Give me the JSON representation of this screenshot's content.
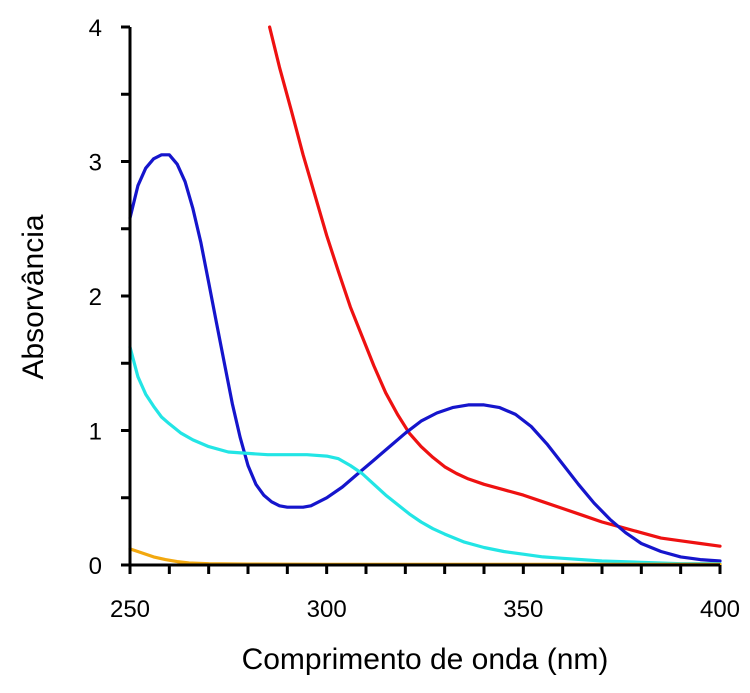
{
  "chart_data": {
    "type": "line",
    "title": "",
    "xlabel": "Comprimento de onda (nm)",
    "ylabel": "Absorvância",
    "xlim": [
      250,
      400
    ],
    "ylim": [
      0,
      4
    ],
    "x_ticks": [
      "250",
      "300",
      "350",
      "400"
    ],
    "y_ticks": [
      "0",
      "1",
      "2",
      "3",
      "4"
    ],
    "grid": false,
    "legend": "none",
    "series": [
      {
        "color": "#ee1111",
        "x": [
          285.5,
          288,
          291,
          294,
          297,
          300,
          303,
          306,
          309,
          312,
          315,
          318,
          321,
          324,
          327,
          330,
          333,
          336,
          340,
          345,
          350,
          355,
          360,
          365,
          370,
          375,
          380,
          385,
          390,
          395,
          400
        ],
        "y": [
          4.0,
          3.7,
          3.38,
          3.05,
          2.75,
          2.45,
          2.18,
          1.92,
          1.7,
          1.48,
          1.28,
          1.12,
          0.98,
          0.88,
          0.8,
          0.73,
          0.68,
          0.64,
          0.6,
          0.56,
          0.52,
          0.47,
          0.42,
          0.37,
          0.32,
          0.28,
          0.24,
          0.2,
          0.18,
          0.16,
          0.14
        ]
      },
      {
        "color": "#1515cc",
        "x": [
          250,
          252,
          254,
          256,
          258,
          260,
          262,
          264,
          266,
          268,
          270,
          272,
          274,
          276,
          278,
          280,
          282,
          284,
          286,
          288,
          290,
          292,
          294,
          296,
          298,
          300,
          304,
          308,
          312,
          316,
          320,
          324,
          328,
          332,
          336,
          340,
          344,
          348,
          352,
          356,
          360,
          364,
          368,
          372,
          376,
          380,
          385,
          390,
          395,
          400
        ],
        "y": [
          2.58,
          2.82,
          2.95,
          3.02,
          3.05,
          3.05,
          2.98,
          2.85,
          2.65,
          2.4,
          2.1,
          1.8,
          1.5,
          1.2,
          0.95,
          0.74,
          0.6,
          0.52,
          0.47,
          0.44,
          0.43,
          0.43,
          0.43,
          0.44,
          0.47,
          0.5,
          0.58,
          0.68,
          0.78,
          0.88,
          0.98,
          1.07,
          1.13,
          1.17,
          1.19,
          1.19,
          1.17,
          1.12,
          1.03,
          0.9,
          0.75,
          0.6,
          0.46,
          0.34,
          0.24,
          0.16,
          0.1,
          0.06,
          0.04,
          0.03
        ]
      },
      {
        "color": "#22e5e5",
        "x": [
          250,
          252,
          254,
          256,
          258,
          260,
          263,
          266,
          270,
          275,
          280,
          285,
          290,
          295,
          300,
          303,
          306,
          309,
          312,
          315,
          318,
          321,
          324,
          327,
          330,
          335,
          340,
          345,
          350,
          355,
          360,
          370,
          380,
          390,
          400
        ],
        "y": [
          1.62,
          1.4,
          1.27,
          1.18,
          1.1,
          1.05,
          0.98,
          0.93,
          0.88,
          0.84,
          0.83,
          0.82,
          0.82,
          0.82,
          0.81,
          0.79,
          0.74,
          0.68,
          0.6,
          0.52,
          0.45,
          0.38,
          0.32,
          0.27,
          0.23,
          0.17,
          0.13,
          0.1,
          0.08,
          0.06,
          0.05,
          0.03,
          0.02,
          0.01,
          0.01
        ]
      },
      {
        "color": "#f2a80f",
        "x": [
          250,
          253,
          256,
          259,
          262,
          265,
          270,
          280,
          300,
          350,
          400
        ],
        "y": [
          0.12,
          0.09,
          0.06,
          0.04,
          0.025,
          0.015,
          0.01,
          0.007,
          0.005,
          0.005,
          0.005
        ]
      }
    ]
  }
}
